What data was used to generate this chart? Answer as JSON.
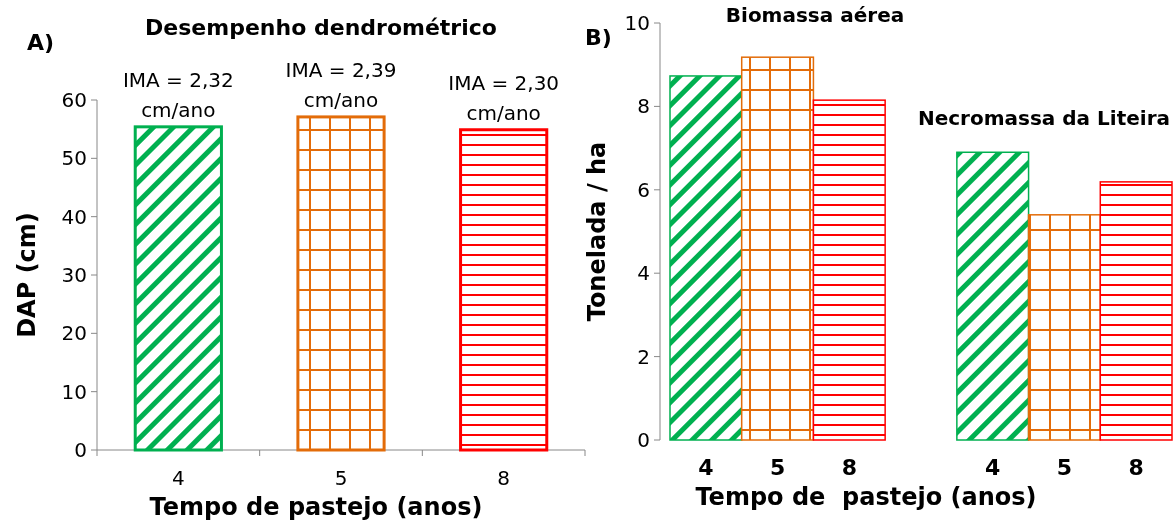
{
  "chart_data": [
    {
      "type": "bar",
      "title": "Desempenho dendrométrico",
      "xlabel": "Tempo de pastejo (anos)",
      "ylabel": "DAP (cm)",
      "categories": [
        "4",
        "5",
        "8"
      ],
      "values": [
        55.4,
        57.1,
        54.9
      ],
      "colors": [
        "#00b050",
        "#e36c09",
        "#ff0000"
      ],
      "ylim": [
        0,
        60
      ],
      "yticks": [
        0,
        10,
        20,
        30,
        40,
        50,
        60
      ],
      "annotations": [
        "A)",
        {
          "text": "IMA = 2,32 cm/ano",
          "x": "4",
          "y": 55.4
        },
        {
          "text": "IMA = 2,39 cm/ano",
          "x": "5",
          "y": 57.1
        },
        {
          "text": "IMA = 2,30 cm/ano",
          "x": "8",
          "y": 54.9
        }
      ]
    },
    {
      "type": "bar",
      "xlabel": "Tempo de  pastejo (anos)",
      "ylabel": "Tonelada / ha",
      "categories": [
        "4",
        "5",
        "8",
        null,
        "4",
        "5",
        "8"
      ],
      "values": [
        8.73,
        9.18,
        8.15,
        null,
        6.9,
        5.4,
        6.19
      ],
      "colors": [
        "#00b050",
        "#e36c09",
        "#ff0000",
        null,
        "#00b050",
        "#e36c09",
        "#ff0000"
      ],
      "ylim": [
        0,
        10
      ],
      "yticks": [
        0,
        2,
        4,
        6,
        8,
        10
      ],
      "annotations": [
        "B)",
        "Biomassa aérea",
        "Necromassa da Liteira"
      ]
    }
  ]
}
